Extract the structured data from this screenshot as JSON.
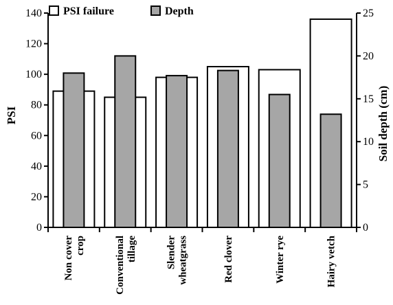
{
  "chart_data": {
    "type": "bar",
    "categories": [
      [
        "Non cover",
        "crop"
      ],
      [
        "Conventional",
        "tillage"
      ],
      [
        "Slender",
        "wheatgrass"
      ],
      [
        "Red clover"
      ],
      [
        "Winter rye"
      ],
      [
        "Hairy vetch"
      ]
    ],
    "series": [
      {
        "name": "PSI failure",
        "axis": "left",
        "values": [
          89,
          85,
          98,
          105,
          103,
          136
        ],
        "fill": "#ffffff"
      },
      {
        "name": "Depth",
        "axis": "right",
        "values": [
          18,
          20,
          17.7,
          18.3,
          15.5,
          13.2
        ],
        "fill": "#a6a6a6"
      }
    ],
    "ylabel_left": "PSI",
    "ylabel_right": "Soil depth (cm)",
    "ylim_left": [
      0,
      140
    ],
    "yticks_left": [
      "0",
      "20",
      "40",
      "60",
      "80",
      "100",
      "120",
      "140"
    ],
    "ylim_right": [
      0,
      25
    ],
    "yticks_right": [
      "0",
      "5",
      "10",
      "15",
      "20",
      "25"
    ],
    "legend": [
      "PSI failure",
      "Depth"
    ],
    "legend_position": "top-left",
    "grid": false
  }
}
